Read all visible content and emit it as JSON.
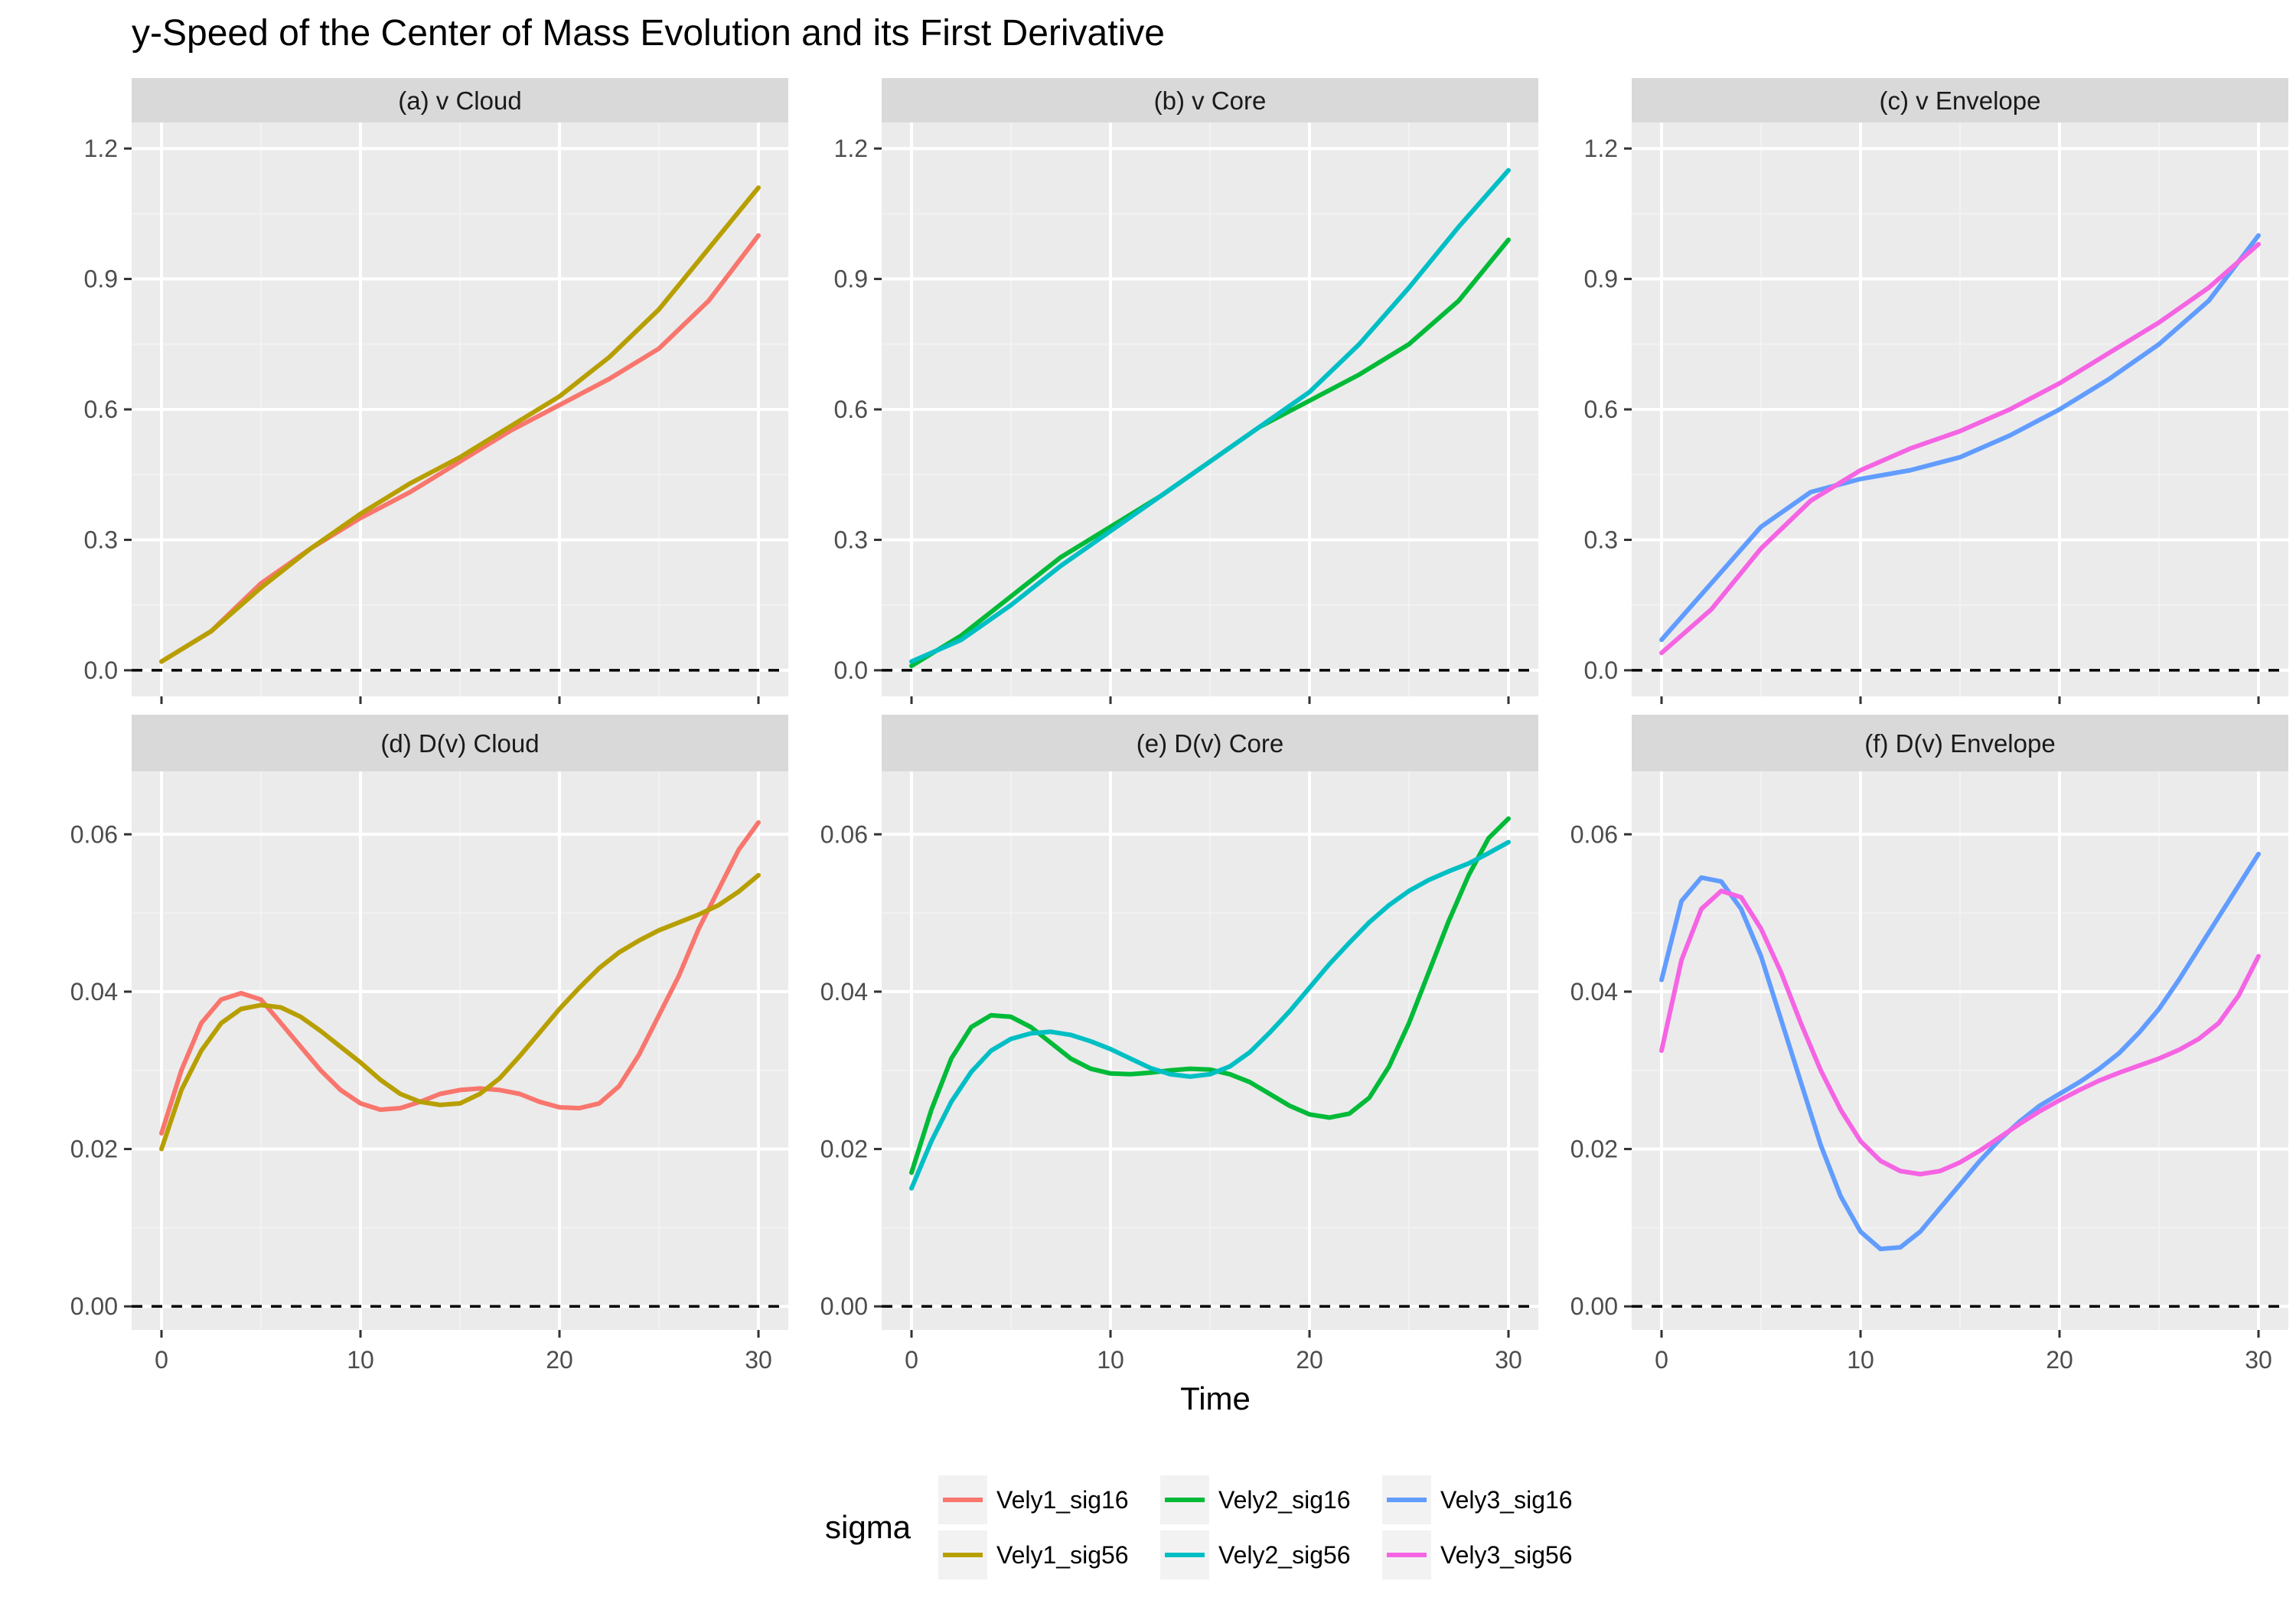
{
  "title": "y-Speed of the Center of Mass Evolution and its First Derivative",
  "colors": {
    "panel_bg": "#ebebeb",
    "strip_bg": "#d9d9d9",
    "grid_major": "#ffffff",
    "grid_minor": "#f2f2f2",
    "tick_text": "#4d4d4d"
  },
  "legend": {
    "title": "sigma",
    "position": "bottom",
    "entries": [
      {
        "name": "Vely1_sig16",
        "color": "#F8766D"
      },
      {
        "name": "Vely1_sig56",
        "color": "#B79F00"
      },
      {
        "name": "Vely2_sig16",
        "color": "#00BA38"
      },
      {
        "name": "Vely2_sig56",
        "color": "#00BFC4"
      },
      {
        "name": "Vely3_sig16",
        "color": "#619CFF"
      },
      {
        "name": "Vely3_sig56",
        "color": "#F564E3"
      }
    ]
  },
  "chart_data": [
    {
      "type": "line",
      "panel": "(a) v Cloud",
      "xlabel": "Time",
      "xlim": [
        -1.5,
        31.5
      ],
      "ylim": [
        -0.06,
        1.26
      ],
      "xticks": [
        "0",
        "10",
        "20",
        "30"
      ],
      "yticks": [
        "0.0",
        "0.3",
        "0.6",
        "0.9",
        "1.2"
      ],
      "hline": 0,
      "series": [
        {
          "name": "Vely1_sig16",
          "color": "#F8766D",
          "x": [
            0,
            2.5,
            5,
            7.5,
            10,
            12.5,
            15,
            17.5,
            20,
            22.5,
            25,
            27.5,
            30
          ],
          "y": [
            0.02,
            0.09,
            0.2,
            0.28,
            0.35,
            0.41,
            0.48,
            0.55,
            0.61,
            0.67,
            0.74,
            0.85,
            1.0
          ]
        },
        {
          "name": "Vely1_sig56",
          "color": "#B79F00",
          "x": [
            0,
            2.5,
            5,
            7.5,
            10,
            12.5,
            15,
            17.5,
            20,
            22.5,
            25,
            27.5,
            30
          ],
          "y": [
            0.02,
            0.09,
            0.19,
            0.28,
            0.36,
            0.43,
            0.49,
            0.56,
            0.63,
            0.72,
            0.83,
            0.97,
            1.11
          ]
        }
      ]
    },
    {
      "type": "line",
      "panel": "(b) v Core",
      "xlabel": "Time",
      "xlim": [
        -1.5,
        31.5
      ],
      "ylim": [
        -0.06,
        1.26
      ],
      "xticks": [
        "0",
        "10",
        "20",
        "30"
      ],
      "yticks": [
        "0.0",
        "0.3",
        "0.6",
        "0.9",
        "1.2"
      ],
      "hline": 0,
      "series": [
        {
          "name": "Vely2_sig16",
          "color": "#00BA38",
          "x": [
            0,
            2.5,
            5,
            7.5,
            10,
            12.5,
            15,
            17.5,
            20,
            22.5,
            25,
            27.5,
            30
          ],
          "y": [
            0.01,
            0.08,
            0.17,
            0.26,
            0.33,
            0.4,
            0.48,
            0.56,
            0.62,
            0.68,
            0.75,
            0.85,
            0.99
          ]
        },
        {
          "name": "Vely2_sig56",
          "color": "#00BFC4",
          "x": [
            0,
            2.5,
            5,
            7.5,
            10,
            12.5,
            15,
            17.5,
            20,
            22.5,
            25,
            27.5,
            30
          ],
          "y": [
            0.02,
            0.07,
            0.15,
            0.24,
            0.32,
            0.4,
            0.48,
            0.56,
            0.64,
            0.75,
            0.88,
            1.02,
            1.15
          ]
        }
      ]
    },
    {
      "type": "line",
      "panel": "(c) v Envelope",
      "xlabel": "Time",
      "xlim": [
        -1.5,
        31.5
      ],
      "ylim": [
        -0.06,
        1.26
      ],
      "xticks": [
        "0",
        "10",
        "20",
        "30"
      ],
      "yticks": [
        "0.0",
        "0.3",
        "0.6",
        "0.9",
        "1.2"
      ],
      "hline": 0,
      "series": [
        {
          "name": "Vely3_sig16",
          "color": "#619CFF",
          "x": [
            0,
            2.5,
            5,
            7.5,
            10,
            12.5,
            15,
            17.5,
            20,
            22.5,
            25,
            27.5,
            30
          ],
          "y": [
            0.07,
            0.2,
            0.33,
            0.41,
            0.44,
            0.46,
            0.49,
            0.54,
            0.6,
            0.67,
            0.75,
            0.85,
            1.0
          ]
        },
        {
          "name": "Vely3_sig56",
          "color": "#F564E3",
          "x": [
            0,
            2.5,
            5,
            7.5,
            10,
            12.5,
            15,
            17.5,
            20,
            22.5,
            25,
            27.5,
            30
          ],
          "y": [
            0.04,
            0.14,
            0.28,
            0.39,
            0.46,
            0.51,
            0.55,
            0.6,
            0.66,
            0.73,
            0.8,
            0.88,
            0.98
          ]
        }
      ]
    },
    {
      "type": "line",
      "panel": "(d) D(v) Cloud",
      "xlabel": "Time",
      "xlim": [
        -1.5,
        31.5
      ],
      "ylim": [
        -0.003,
        0.068
      ],
      "xticks": [
        "0",
        "10",
        "20",
        "30"
      ],
      "yticks": [
        "0.00",
        "0.02",
        "0.04",
        "0.06"
      ],
      "hline": 0,
      "series": [
        {
          "name": "Vely1_sig16",
          "color": "#F8766D",
          "x": [
            0,
            1,
            2,
            3,
            4,
            5,
            6,
            7,
            8,
            9,
            10,
            11,
            12,
            13,
            14,
            15,
            16,
            17,
            18,
            19,
            20,
            21,
            22,
            23,
            24,
            25,
            26,
            27,
            28,
            29,
            30
          ],
          "y": [
            0.022,
            0.03,
            0.036,
            0.039,
            0.0398,
            0.039,
            0.036,
            0.033,
            0.03,
            0.0275,
            0.0258,
            0.025,
            0.0252,
            0.026,
            0.027,
            0.0275,
            0.0277,
            0.0275,
            0.027,
            0.026,
            0.0253,
            0.0252,
            0.0258,
            0.028,
            0.032,
            0.037,
            0.042,
            0.048,
            0.053,
            0.058,
            0.0615
          ]
        },
        {
          "name": "Vely1_sig56",
          "color": "#B79F00",
          "x": [
            0,
            1,
            2,
            3,
            4,
            5,
            6,
            7,
            8,
            9,
            10,
            11,
            12,
            13,
            14,
            15,
            16,
            17,
            18,
            19,
            20,
            21,
            22,
            23,
            24,
            25,
            26,
            27,
            28,
            29,
            30
          ],
          "y": [
            0.02,
            0.0275,
            0.0325,
            0.036,
            0.0378,
            0.0383,
            0.038,
            0.0368,
            0.035,
            0.033,
            0.031,
            0.0288,
            0.027,
            0.026,
            0.0256,
            0.0258,
            0.027,
            0.029,
            0.0318,
            0.0348,
            0.0378,
            0.0405,
            0.043,
            0.045,
            0.0465,
            0.0478,
            0.0488,
            0.0498,
            0.051,
            0.0527,
            0.0548
          ]
        }
      ]
    },
    {
      "type": "line",
      "panel": "(e) D(v) Core",
      "xlabel": "Time",
      "xlim": [
        -1.5,
        31.5
      ],
      "ylim": [
        -0.003,
        0.068
      ],
      "xticks": [
        "0",
        "10",
        "20",
        "30"
      ],
      "yticks": [
        "0.00",
        "0.02",
        "0.04",
        "0.06"
      ],
      "hline": 0,
      "series": [
        {
          "name": "Vely2_sig16",
          "color": "#00BA38",
          "x": [
            0,
            1,
            2,
            3,
            4,
            5,
            6,
            7,
            8,
            9,
            10,
            11,
            12,
            13,
            14,
            15,
            16,
            17,
            18,
            19,
            20,
            21,
            22,
            23,
            24,
            25,
            26,
            27,
            28,
            29,
            30
          ],
          "y": [
            0.017,
            0.025,
            0.0315,
            0.0355,
            0.037,
            0.0368,
            0.0355,
            0.0335,
            0.0315,
            0.0302,
            0.0296,
            0.0295,
            0.0297,
            0.03,
            0.0302,
            0.0301,
            0.0295,
            0.0285,
            0.027,
            0.0255,
            0.0244,
            0.024,
            0.0245,
            0.0265,
            0.0305,
            0.036,
            0.0425,
            0.049,
            0.0548,
            0.0595,
            0.062
          ]
        },
        {
          "name": "Vely2_sig56",
          "color": "#00BFC4",
          "x": [
            0,
            1,
            2,
            3,
            4,
            5,
            6,
            7,
            8,
            9,
            10,
            11,
            12,
            13,
            14,
            15,
            16,
            17,
            18,
            19,
            20,
            21,
            22,
            23,
            24,
            25,
            26,
            27,
            28,
            29,
            30
          ],
          "y": [
            0.015,
            0.021,
            0.026,
            0.0298,
            0.0325,
            0.034,
            0.0347,
            0.0349,
            0.0345,
            0.0337,
            0.0327,
            0.0315,
            0.0303,
            0.0295,
            0.0292,
            0.0295,
            0.0305,
            0.0323,
            0.0348,
            0.0375,
            0.0405,
            0.0435,
            0.0462,
            0.0488,
            0.051,
            0.0528,
            0.0542,
            0.0553,
            0.0563,
            0.0576,
            0.059
          ]
        }
      ]
    },
    {
      "type": "line",
      "panel": "(f) D(v) Envelope",
      "xlabel": "Time",
      "xlim": [
        -1.5,
        31.5
      ],
      "ylim": [
        -0.003,
        0.068
      ],
      "xticks": [
        "0",
        "10",
        "20",
        "30"
      ],
      "yticks": [
        "0.00",
        "0.02",
        "0.04",
        "0.06"
      ],
      "hline": 0,
      "series": [
        {
          "name": "Vely3_sig16",
          "color": "#619CFF",
          "x": [
            0,
            1,
            2,
            3,
            4,
            5,
            6,
            7,
            8,
            9,
            10,
            11,
            12,
            13,
            14,
            15,
            16,
            17,
            18,
            19,
            20,
            21,
            22,
            23,
            24,
            25,
            26,
            27,
            28,
            29,
            30
          ],
          "y": [
            0.0415,
            0.0515,
            0.0545,
            0.054,
            0.0505,
            0.0445,
            0.0365,
            0.0285,
            0.0205,
            0.014,
            0.0095,
            0.0073,
            0.0075,
            0.0095,
            0.0125,
            0.0155,
            0.0185,
            0.0212,
            0.0235,
            0.0255,
            0.027,
            0.0285,
            0.0302,
            0.0322,
            0.0348,
            0.0378,
            0.0415,
            0.0455,
            0.0495,
            0.0535,
            0.0575
          ]
        },
        {
          "name": "Vely3_sig56",
          "color": "#F564E3",
          "x": [
            0,
            1,
            2,
            3,
            4,
            5,
            6,
            7,
            8,
            9,
            10,
            11,
            12,
            13,
            14,
            15,
            16,
            17,
            18,
            19,
            20,
            21,
            22,
            23,
            24,
            25,
            26,
            27,
            28,
            29,
            30
          ],
          "y": [
            0.0325,
            0.044,
            0.0505,
            0.0528,
            0.052,
            0.048,
            0.0425,
            0.036,
            0.03,
            0.025,
            0.021,
            0.0185,
            0.0172,
            0.0168,
            0.0172,
            0.0183,
            0.0198,
            0.0215,
            0.0232,
            0.0248,
            0.0262,
            0.0275,
            0.0287,
            0.0297,
            0.0306,
            0.0315,
            0.0326,
            0.034,
            0.036,
            0.0395,
            0.0445
          ]
        }
      ]
    }
  ]
}
